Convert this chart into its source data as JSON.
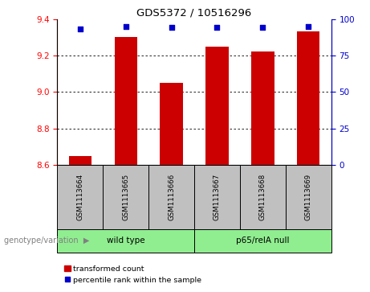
{
  "title": "GDS5372 / 10516296",
  "samples": [
    "GSM1113664",
    "GSM1113665",
    "GSM1113666",
    "GSM1113667",
    "GSM1113668",
    "GSM1113669"
  ],
  "red_values": [
    8.65,
    9.3,
    9.05,
    9.25,
    9.22,
    9.33
  ],
  "blue_values": [
    93,
    95,
    94,
    94,
    94,
    95
  ],
  "ylim_left": [
    8.6,
    9.4
  ],
  "ylim_right": [
    0,
    100
  ],
  "yticks_left": [
    8.6,
    8.8,
    9.0,
    9.2,
    9.4
  ],
  "yticks_right": [
    0,
    25,
    50,
    75,
    100
  ],
  "groups": [
    {
      "label": "wild type",
      "indices": [
        0,
        1,
        2
      ],
      "color": "#90EE90"
    },
    {
      "label": "p65/relA null",
      "indices": [
        3,
        4,
        5
      ],
      "color": "#90EE90"
    }
  ],
  "genotype_label": "genotype/variation",
  "bar_color": "#CC0000",
  "dot_color": "#0000CC",
  "bar_width": 0.5,
  "plot_bg_color": "#ffffff",
  "tick_bg_color": "#C0C0C0",
  "legend_labels": [
    "transformed count",
    "percentile rank within the sample"
  ]
}
